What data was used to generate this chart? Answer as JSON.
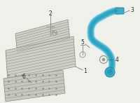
{
  "bg_color": "#f0f0eb",
  "panel_color": "#d0d0c8",
  "panel_edge": "#888880",
  "hatch_color": "#aaaaaa",
  "pipe_color": "#3ab0cc",
  "pipe_dark": "#2288aa",
  "pipe_light": "#80d0e8",
  "connector_color": "#999990",
  "label_color": "#222222",
  "leader_color": "#666666",
  "figsize": [
    2.0,
    1.47
  ],
  "dpi": 100
}
